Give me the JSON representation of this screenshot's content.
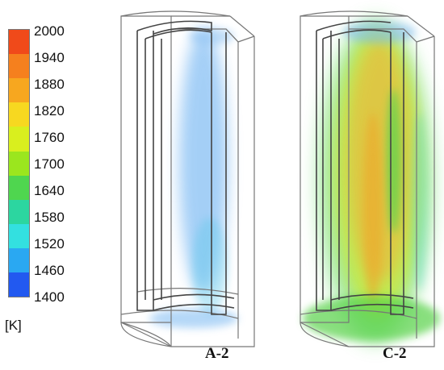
{
  "colorbar": {
    "unit": "[K]",
    "ticks": [
      "2000",
      "1940",
      "1880",
      "1820",
      "1760",
      "1700",
      "1640",
      "1580",
      "1520",
      "1460",
      "1400"
    ],
    "bands": [
      "#f04a1a",
      "#f5801e",
      "#f7a71f",
      "#f7d820",
      "#d9ef1e",
      "#9be61e",
      "#4fd64f",
      "#2cd6a0",
      "#33e0e0",
      "#2aa8f2",
      "#2259f0"
    ]
  },
  "panels": [
    {
      "label": "A-2"
    },
    {
      "label": "C-2"
    }
  ],
  "colors": {
    "frame": "#5a5a5a",
    "glow_blue": "#5aa8f0",
    "glow_cyan": "#55d8d8",
    "glow_green": "#58d24a",
    "glow_yellow": "#d4ea2a",
    "glow_orange": "#f0a428"
  }
}
